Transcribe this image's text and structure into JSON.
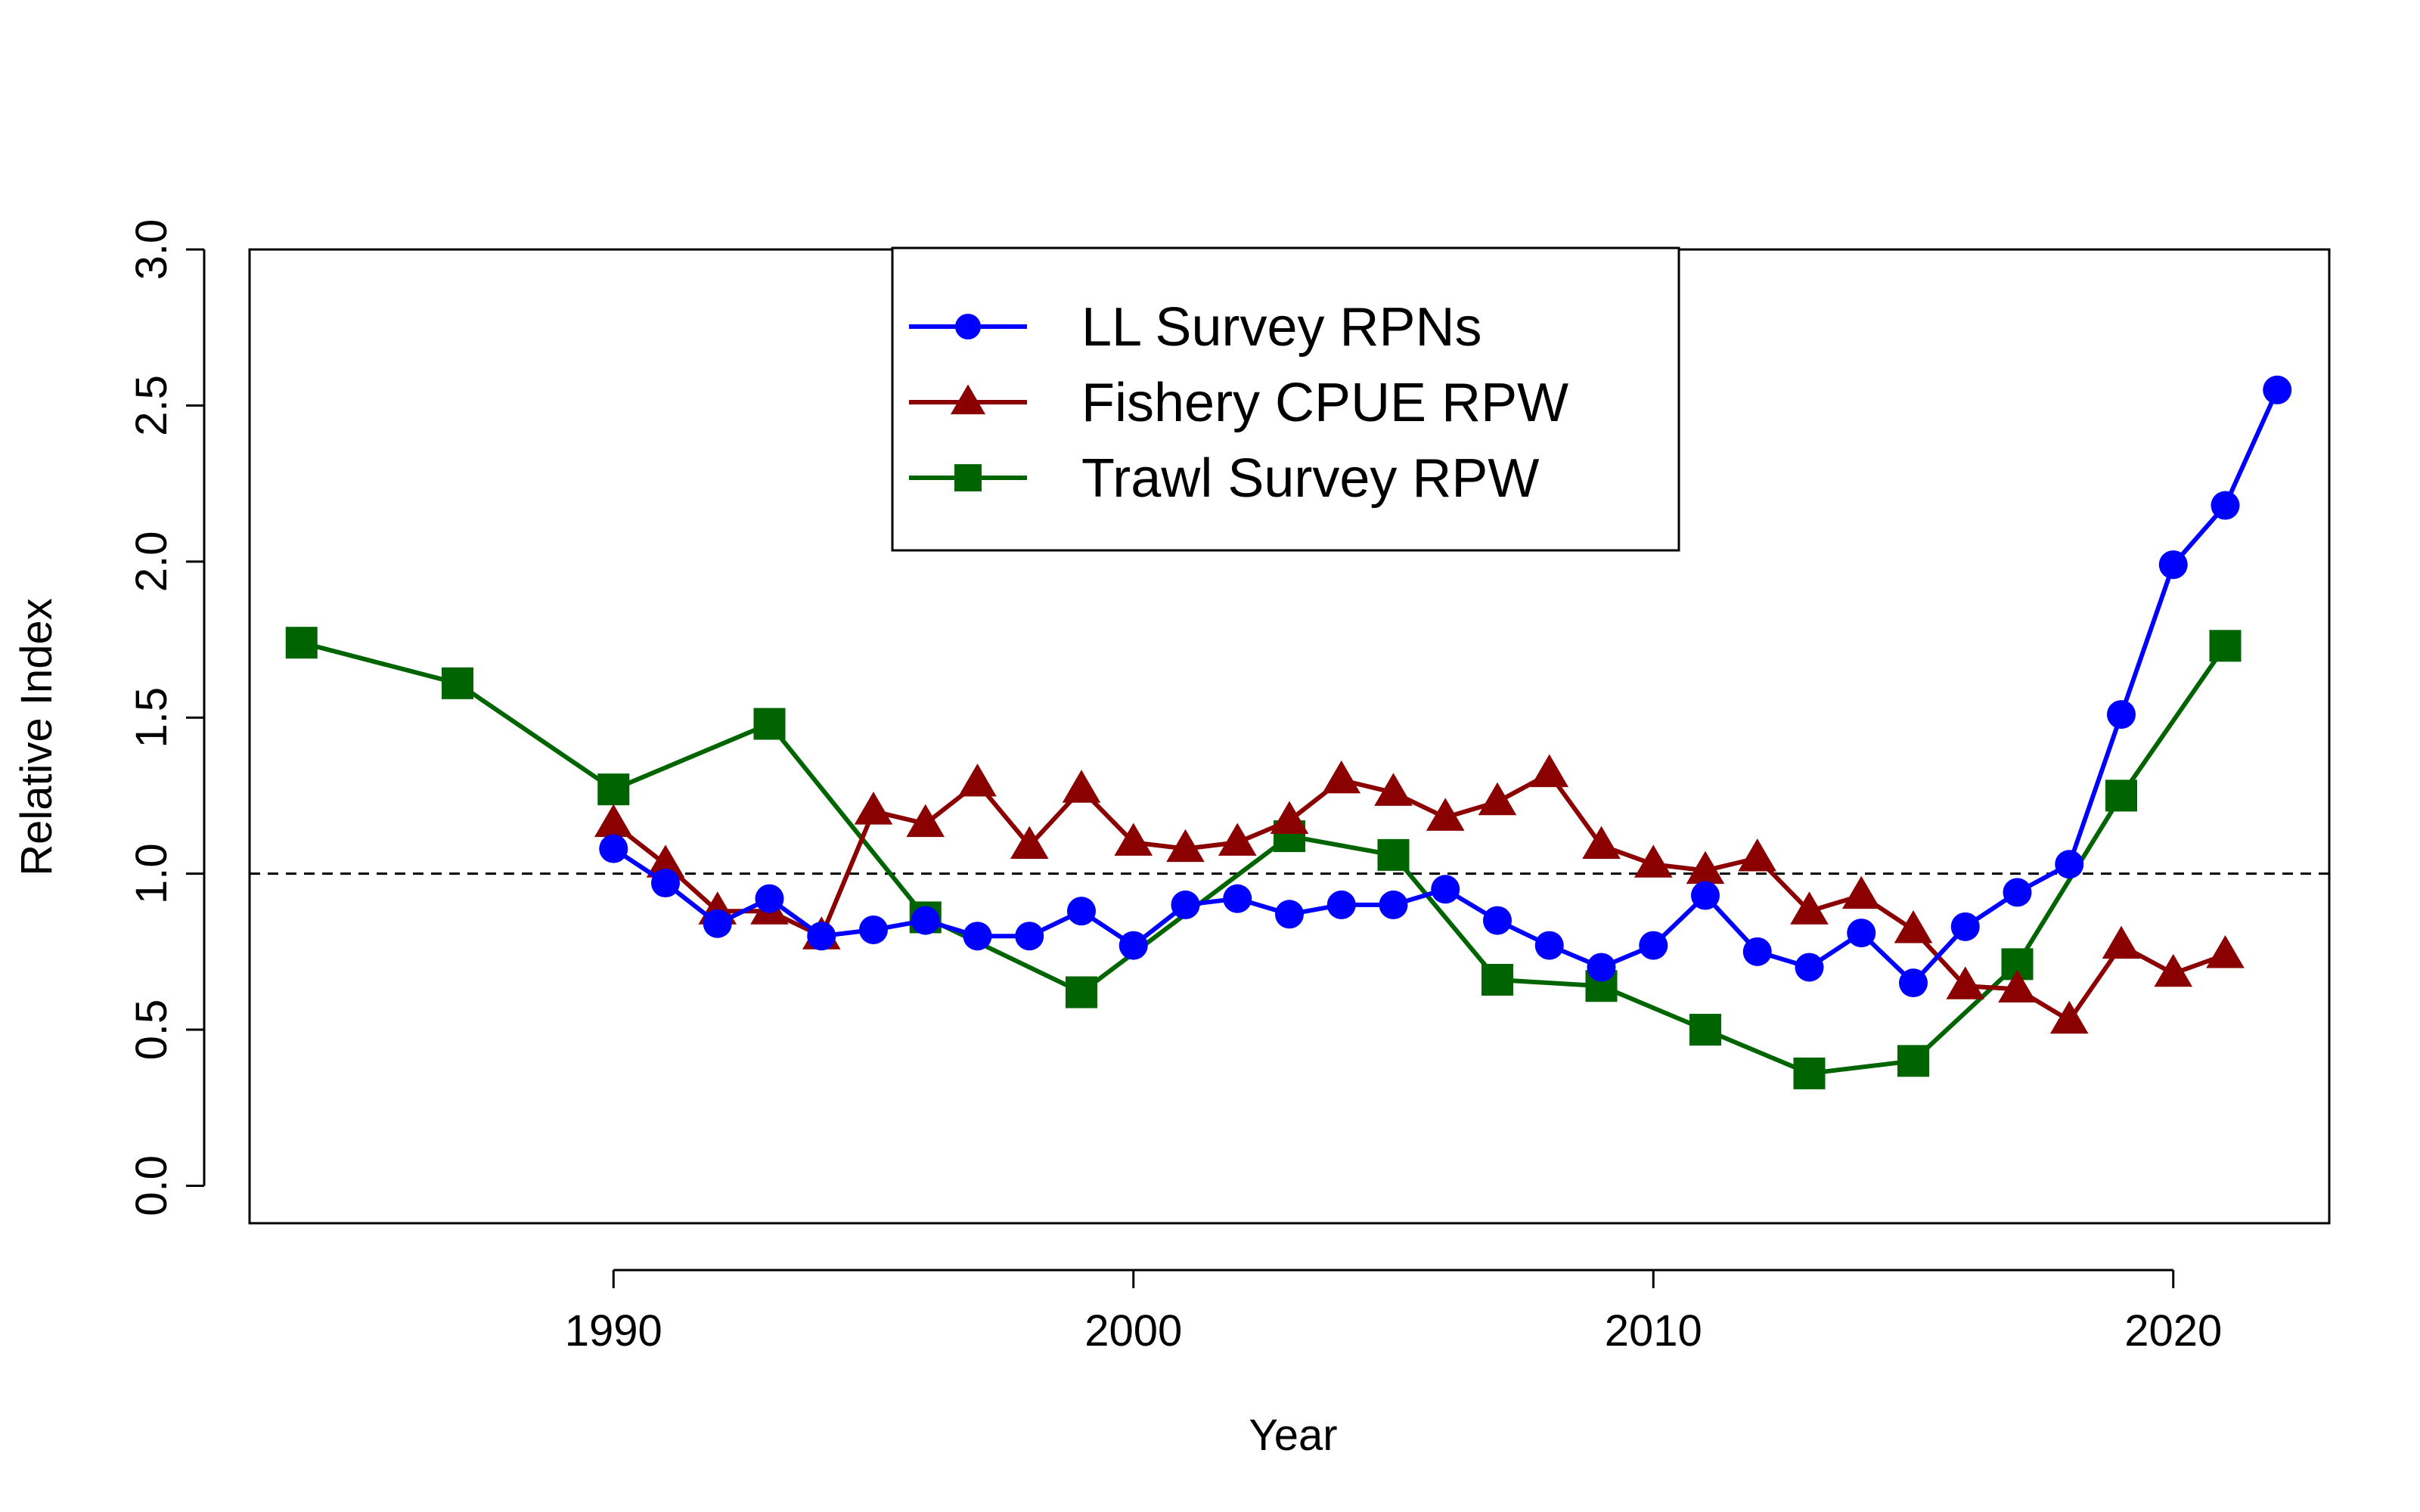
{
  "chart_data": {
    "type": "line",
    "title": "",
    "xlabel": "Year",
    "ylabel": "Relative Index",
    "xlim": [
      1983,
      2023
    ],
    "ylim": [
      -0.12,
      3.0
    ],
    "x_ticks": [
      1990,
      2000,
      2010,
      2020
    ],
    "x_tick_labels": [
      "1990",
      "2000",
      "2010",
      "2020"
    ],
    "y_ticks": [
      0.0,
      0.5,
      1.0,
      1.5,
      2.0,
      2.5,
      3.0
    ],
    "y_tick_labels": [
      "0.0",
      "0.5",
      "1.0",
      "1.5",
      "2.0",
      "2.5",
      "3.0"
    ],
    "reference_line": {
      "y": 1.0,
      "style": "dashed",
      "color": "#000000"
    },
    "grid": false,
    "legend": {
      "placement": "top-center",
      "boxed": true
    },
    "series": [
      {
        "name": "LL Survey RPNs",
        "color": "#0000ff",
        "marker": "circle",
        "x": [
          1990,
          1991,
          1992,
          1993,
          1994,
          1995,
          1996,
          1997,
          1998,
          1999,
          2000,
          2001,
          2002,
          2003,
          2004,
          2005,
          2006,
          2007,
          2008,
          2009,
          2010,
          2011,
          2012,
          2013,
          2014,
          2015,
          2016,
          2017,
          2018,
          2019,
          2020,
          2021,
          2022
        ],
        "y": [
          1.08,
          0.97,
          0.84,
          0.92,
          0.8,
          0.82,
          0.85,
          0.8,
          0.8,
          0.88,
          0.77,
          0.9,
          0.92,
          0.87,
          0.9,
          0.9,
          0.95,
          0.85,
          0.77,
          0.7,
          0.77,
          0.93,
          0.75,
          0.7,
          0.81,
          0.65,
          0.83,
          0.94,
          1.03,
          1.51,
          1.99,
          2.18,
          2.55
        ]
      },
      {
        "name": "Fishery CPUE RPW",
        "color": "#8b0000",
        "marker": "triangle",
        "x": [
          1990,
          1991,
          1992,
          1993,
          1994,
          1995,
          1996,
          1997,
          1998,
          1999,
          2000,
          2001,
          2002,
          2003,
          2004,
          2005,
          2006,
          2007,
          2008,
          2009,
          2010,
          2011,
          2012,
          2013,
          2014,
          2015,
          2016,
          2017,
          2018,
          2019,
          2020,
          2021
        ],
        "y": [
          1.16,
          1.03,
          0.88,
          0.88,
          0.8,
          1.2,
          1.16,
          1.29,
          1.09,
          1.27,
          1.1,
          1.08,
          1.1,
          1.17,
          1.3,
          1.26,
          1.18,
          1.23,
          1.32,
          1.09,
          1.03,
          1.01,
          1.05,
          0.88,
          0.93,
          0.82,
          0.64,
          0.63,
          0.53,
          0.77,
          0.68,
          0.74
        ]
      },
      {
        "name": "Trawl Survey RPW",
        "color": "#006400",
        "marker": "square",
        "x": [
          1984,
          1987,
          1990,
          1993,
          1996,
          1999,
          2003,
          2005,
          2007,
          2009,
          2011,
          2013,
          2015,
          2017,
          2019,
          2021
        ],
        "y": [
          1.74,
          1.61,
          1.27,
          1.48,
          0.86,
          0.62,
          1.12,
          1.06,
          0.66,
          0.64,
          0.5,
          0.36,
          0.4,
          0.71,
          1.25,
          1.73
        ]
      }
    ]
  }
}
